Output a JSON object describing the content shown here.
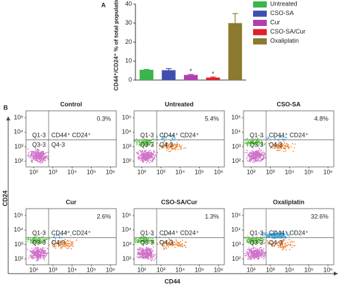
{
  "chart_data": [
    {
      "type": "bar",
      "panel": "A",
      "ylabel": "CD44⁺/CD24⁺ % of total population",
      "categories": [
        "Untreated",
        "CSO-SA",
        "Cur",
        "CSO-SA/Cur",
        "Oxaliplatin"
      ],
      "values": [
        5.4,
        5.2,
        2.7,
        1.3,
        30
      ],
      "errors": [
        0.2,
        0.8,
        0.3,
        0.3,
        5
      ],
      "colors": [
        "#3cb44b",
        "#3f4fb0",
        "#b040b0",
        "#e0202a",
        "#8b7a2f"
      ],
      "ylim": [
        0,
        40
      ],
      "yticks": [
        0,
        10,
        20,
        30,
        40
      ],
      "annotations": [
        {
          "category": "Cur",
          "text": "*"
        },
        {
          "category": "CSO-SA/Cur",
          "text": "*"
        }
      ],
      "legend": "right"
    },
    {
      "type": "flow",
      "panel": "B",
      "xlabel": "CD44",
      "ylabel": "CD24",
      "categories": [
        "Control",
        "Untreated",
        "CSO-SA",
        "Cur",
        "CSO-SA/Cur",
        "Oxaliplatin"
      ],
      "values": [
        0.3,
        5.4,
        4.8,
        2.6,
        1.3,
        32.6
      ],
      "value_labels": [
        "0.3%",
        "5.4%",
        "4.8%",
        "2.6%",
        "1.3%",
        "32.6%"
      ],
      "xscale": "log",
      "yscale": "log",
      "xlim": [
        40,
        2000000
      ],
      "xticks": [
        {
          "value": 100,
          "label": "10²"
        },
        {
          "value": 1000,
          "label": "10³"
        },
        {
          "value": 10000,
          "label": "10⁴"
        },
        {
          "value": 100000,
          "label": "10⁵"
        },
        {
          "value": 1000000,
          "label": "10⁶"
        }
      ],
      "ylim": [
        40,
        300000
      ],
      "yticks": [
        {
          "value": 100,
          "label": "10²"
        },
        {
          "value": 1000,
          "label": "10³"
        },
        {
          "value": 10000,
          "label": "10⁴"
        },
        {
          "value": 100000,
          "label": "10⁵"
        }
      ],
      "gate": {
        "x": 600,
        "y": 3000
      },
      "quadrant_labels": [
        "Q1-3",
        "CD44⁺ CD24⁺",
        "Q3-3",
        "Q4-3"
      ]
    }
  ]
}
